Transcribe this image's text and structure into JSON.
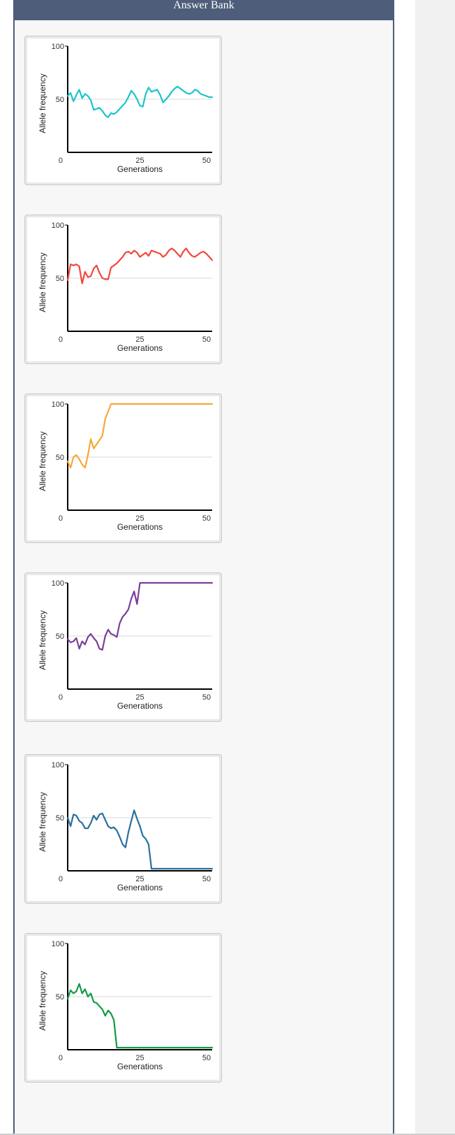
{
  "header": {
    "title": "Answer Bank"
  },
  "chart_data": [
    {
      "type": "line",
      "xlabel": "Generations",
      "ylabel": "Allele frequency",
      "xticks": [
        "25",
        "50"
      ],
      "yticks": [
        "0",
        "50",
        "100"
      ],
      "xlim": [
        0,
        50
      ],
      "ylim": [
        0,
        100
      ],
      "grid": "y=50 reference line",
      "series": [
        {
          "color": "#1cc5c9",
          "x": [
            0,
            1,
            2,
            3,
            4,
            5,
            6,
            7,
            8,
            9,
            10,
            11,
            12,
            13,
            14,
            15,
            16,
            17,
            18,
            19,
            20,
            21,
            22,
            23,
            24,
            25,
            26,
            27,
            28,
            29,
            30,
            31,
            32,
            33,
            34,
            35,
            36,
            37,
            38,
            39,
            40,
            41,
            42,
            43,
            44,
            45,
            46,
            47,
            48,
            49,
            50
          ],
          "y": [
            53,
            56,
            48,
            54,
            59,
            51,
            55,
            53,
            49,
            40,
            41,
            42,
            39,
            35,
            33,
            37,
            36,
            38,
            41,
            44,
            47,
            52,
            58,
            55,
            50,
            44,
            43,
            55,
            61,
            57,
            58,
            59,
            54,
            47,
            50,
            53,
            57,
            60,
            62,
            60,
            58,
            56,
            55,
            56,
            59,
            58,
            55,
            54,
            53,
            52,
            52
          ]
        }
      ]
    },
    {
      "type": "line",
      "xlabel": "Generations",
      "ylabel": "Allele frequency",
      "xticks": [
        "25",
        "50"
      ],
      "yticks": [
        "0",
        "50",
        "100"
      ],
      "xlim": [
        0,
        50
      ],
      "ylim": [
        0,
        100
      ],
      "grid": "y=50 reference line",
      "series": [
        {
          "color": "#f2473d",
          "x": [
            0,
            1,
            2,
            3,
            4,
            5,
            6,
            7,
            8,
            9,
            10,
            11,
            12,
            13,
            14,
            15,
            16,
            17,
            18,
            19,
            20,
            21,
            22,
            23,
            24,
            25,
            26,
            27,
            28,
            29,
            30,
            31,
            32,
            33,
            34,
            35,
            36,
            37,
            38,
            39,
            40,
            41,
            42,
            43,
            44,
            45,
            46,
            47,
            48,
            49,
            50
          ],
          "y": [
            48,
            63,
            62,
            63,
            61,
            45,
            56,
            51,
            52,
            59,
            62,
            55,
            50,
            49,
            49,
            60,
            62,
            64,
            67,
            70,
            74,
            75,
            73,
            76,
            74,
            70,
            72,
            74,
            71,
            76,
            75,
            74,
            73,
            70,
            72,
            76,
            78,
            76,
            73,
            70,
            75,
            78,
            74,
            71,
            70,
            72,
            74,
            75,
            73,
            70,
            67
          ]
        }
      ]
    },
    {
      "type": "line",
      "xlabel": "Generations",
      "ylabel": "Allele frequency",
      "xticks": [
        "25",
        "50"
      ],
      "yticks": [
        "0",
        "50",
        "100"
      ],
      "xlim": [
        0,
        50
      ],
      "ylim": [
        0,
        100
      ],
      "grid": "y=50 reference line",
      "series": [
        {
          "color": "#f7a839",
          "x": [
            0,
            1,
            2,
            3,
            4,
            5,
            6,
            7,
            8,
            9,
            10,
            11,
            12,
            13,
            14,
            15,
            16,
            17,
            18,
            19,
            20,
            50
          ],
          "y": [
            46,
            40,
            50,
            52,
            48,
            43,
            40,
            52,
            67,
            58,
            62,
            66,
            70,
            86,
            93,
            100,
            100,
            100,
            100,
            100,
            100,
            100
          ]
        }
      ]
    },
    {
      "type": "line",
      "xlabel": "Generations",
      "ylabel": "Allele frequency",
      "xticks": [
        "25",
        "50"
      ],
      "yticks": [
        "0",
        "50",
        "100"
      ],
      "xlim": [
        0,
        50
      ],
      "ylim": [
        0,
        100
      ],
      "grid": "y=50 reference line",
      "series": [
        {
          "color": "#7a3f9a",
          "x": [
            0,
            1,
            2,
            3,
            4,
            5,
            6,
            7,
            8,
            9,
            10,
            11,
            12,
            13,
            14,
            15,
            16,
            17,
            18,
            19,
            20,
            21,
            22,
            23,
            24,
            25,
            26,
            27,
            28,
            29,
            30,
            31,
            32,
            50
          ],
          "y": [
            47,
            44,
            45,
            48,
            38,
            45,
            42,
            49,
            52,
            48,
            45,
            38,
            37,
            50,
            56,
            52,
            51,
            49,
            62,
            68,
            71,
            75,
            85,
            92,
            80,
            100,
            100,
            100,
            100,
            100,
            100,
            100,
            100,
            100
          ]
        }
      ]
    },
    {
      "type": "line",
      "xlabel": "Generations",
      "ylabel": "Allele frequency",
      "xticks": [
        "25",
        "50"
      ],
      "yticks": [
        "0",
        "50",
        "100"
      ],
      "xlim": [
        0,
        50
      ],
      "ylim": [
        0,
        100
      ],
      "grid": "y=50 reference line",
      "series": [
        {
          "color": "#2a6e9e",
          "x": [
            0,
            1,
            2,
            3,
            4,
            5,
            6,
            7,
            8,
            9,
            10,
            11,
            12,
            13,
            14,
            15,
            16,
            17,
            18,
            19,
            20,
            21,
            22,
            23,
            24,
            25,
            26,
            27,
            28,
            29,
            30,
            31,
            32,
            33,
            50
          ],
          "y": [
            50,
            42,
            53,
            52,
            47,
            45,
            40,
            40,
            45,
            52,
            48,
            53,
            54,
            48,
            42,
            40,
            41,
            38,
            32,
            25,
            22,
            36,
            47,
            57,
            49,
            42,
            33,
            30,
            25,
            2,
            2,
            2,
            2,
            2,
            2
          ]
        }
      ]
    },
    {
      "type": "line",
      "xlabel": "Generations",
      "ylabel": "Allele frequency",
      "xticks": [
        "25",
        "50"
      ],
      "yticks": [
        "0",
        "50",
        "100"
      ],
      "xlim": [
        0,
        50
      ],
      "ylim": [
        0,
        100
      ],
      "grid": "y=50 reference line",
      "series": [
        {
          "color": "#119a44",
          "x": [
            0,
            1,
            2,
            3,
            4,
            5,
            6,
            7,
            8,
            9,
            10,
            11,
            12,
            13,
            14,
            15,
            16,
            17,
            18,
            19,
            20,
            21,
            50
          ],
          "y": [
            48,
            56,
            53,
            55,
            62,
            53,
            57,
            50,
            53,
            45,
            44,
            41,
            38,
            32,
            37,
            34,
            28,
            2,
            2,
            2,
            2,
            2,
            2
          ]
        }
      ]
    }
  ]
}
